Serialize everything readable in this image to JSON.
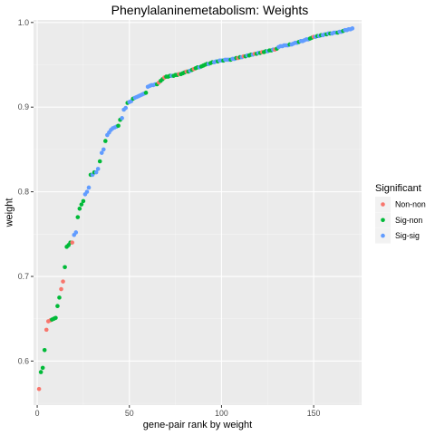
{
  "chart_data": {
    "type": "scatter",
    "title": "Phenylalaninemetabolism: Weights",
    "xlabel": "gene-pair rank by weight",
    "ylabel": "weight",
    "xlim": [
      -2,
      176
    ],
    "ylim": [
      0.548,
      1.003
    ],
    "x_ticks": [
      0,
      50,
      100,
      150
    ],
    "x_tick_labels": [
      "0",
      "50",
      "100",
      "150"
    ],
    "y_ticks": [
      0.6,
      0.7,
      0.8,
      0.9,
      1.0
    ],
    "y_tick_labels": [
      "0.6",
      "0.7",
      "0.8",
      "0.9",
      "1.0"
    ],
    "grid": true,
    "legend": {
      "title": "Significant",
      "position": "right",
      "entries": [
        {
          "key": "Non-non",
          "label": "Non-non",
          "color": "#F8766D"
        },
        {
          "key": "Sig-non",
          "label": "Sig-non",
          "color": "#00BA38"
        },
        {
          "key": "Sig-sig",
          "label": "Sig-sig",
          "color": "#619CFF"
        }
      ]
    },
    "colors": {
      "Non-non": "#F8766D",
      "Sig-non": "#00BA38",
      "Sig-sig": "#619CFF"
    },
    "points": [
      {
        "x": 1,
        "y": 0.567,
        "group": "Non-non"
      },
      {
        "x": 2,
        "y": 0.587,
        "group": "Sig-non"
      },
      {
        "x": 3,
        "y": 0.592,
        "group": "Sig-non"
      },
      {
        "x": 4,
        "y": 0.613,
        "group": "Sig-non"
      },
      {
        "x": 5,
        "y": 0.637,
        "group": "Non-non"
      },
      {
        "x": 6,
        "y": 0.647,
        "group": "Non-non"
      },
      {
        "x": 7,
        "y": 0.648,
        "group": "Non-non"
      },
      {
        "x": 8,
        "y": 0.649,
        "group": "Sig-non"
      },
      {
        "x": 9,
        "y": 0.65,
        "group": "Sig-non"
      },
      {
        "x": 10,
        "y": 0.651,
        "group": "Sig-non"
      },
      {
        "x": 11,
        "y": 0.665,
        "group": "Sig-non"
      },
      {
        "x": 12,
        "y": 0.675,
        "group": "Sig-non"
      },
      {
        "x": 13,
        "y": 0.685,
        "group": "Non-non"
      },
      {
        "x": 14,
        "y": 0.694,
        "group": "Non-non"
      },
      {
        "x": 15,
        "y": 0.711,
        "group": "Sig-non"
      },
      {
        "x": 16,
        "y": 0.735,
        "group": "Sig-non"
      },
      {
        "x": 17,
        "y": 0.737,
        "group": "Sig-non"
      },
      {
        "x": 18,
        "y": 0.74,
        "group": "Sig-non"
      },
      {
        "x": 19,
        "y": 0.74,
        "group": "Non-non"
      },
      {
        "x": 20,
        "y": 0.749,
        "group": "Sig-sig"
      },
      {
        "x": 21,
        "y": 0.752,
        "group": "Sig-sig"
      },
      {
        "x": 22,
        "y": 0.77,
        "group": "Sig-non"
      },
      {
        "x": 23,
        "y": 0.78,
        "group": "Sig-non"
      },
      {
        "x": 24,
        "y": 0.785,
        "group": "Sig-non"
      },
      {
        "x": 25,
        "y": 0.789,
        "group": "Sig-non"
      },
      {
        "x": 26,
        "y": 0.797,
        "group": "Sig-sig"
      },
      {
        "x": 27,
        "y": 0.8,
        "group": "Sig-sig"
      },
      {
        "x": 28,
        "y": 0.805,
        "group": "Sig-sig"
      },
      {
        "x": 29,
        "y": 0.82,
        "group": "Sig-non"
      },
      {
        "x": 30,
        "y": 0.82,
        "group": "Sig-sig"
      },
      {
        "x": 31,
        "y": 0.823,
        "group": "Sig-non"
      },
      {
        "x": 32,
        "y": 0.823,
        "group": "Sig-sig"
      },
      {
        "x": 33,
        "y": 0.827,
        "group": "Sig-sig"
      },
      {
        "x": 34,
        "y": 0.836,
        "group": "Sig-non"
      },
      {
        "x": 35,
        "y": 0.846,
        "group": "Sig-sig"
      },
      {
        "x": 36,
        "y": 0.85,
        "group": "Sig-sig"
      },
      {
        "x": 37,
        "y": 0.86,
        "group": "Sig-non"
      },
      {
        "x": 38,
        "y": 0.867,
        "group": "Sig-sig"
      },
      {
        "x": 39,
        "y": 0.87,
        "group": "Sig-sig"
      },
      {
        "x": 40,
        "y": 0.873,
        "group": "Sig-sig"
      },
      {
        "x": 41,
        "y": 0.875,
        "group": "Sig-sig"
      },
      {
        "x": 42,
        "y": 0.876,
        "group": "Sig-sig"
      },
      {
        "x": 43,
        "y": 0.877,
        "group": "Sig-sig"
      },
      {
        "x": 44,
        "y": 0.878,
        "group": "Sig-non"
      },
      {
        "x": 45,
        "y": 0.885,
        "group": "Sig-non"
      },
      {
        "x": 46,
        "y": 0.887,
        "group": "Sig-sig"
      },
      {
        "x": 47,
        "y": 0.897,
        "group": "Sig-sig"
      },
      {
        "x": 48,
        "y": 0.899,
        "group": "Sig-sig"
      },
      {
        "x": 49,
        "y": 0.905,
        "group": "Sig-non"
      },
      {
        "x": 50,
        "y": 0.906,
        "group": "Sig-sig"
      },
      {
        "x": 51,
        "y": 0.907,
        "group": "Sig-sig"
      },
      {
        "x": 52,
        "y": 0.91,
        "group": "Sig-non"
      },
      {
        "x": 53,
        "y": 0.911,
        "group": "Sig-sig"
      },
      {
        "x": 54,
        "y": 0.912,
        "group": "Sig-sig"
      },
      {
        "x": 55,
        "y": 0.913,
        "group": "Sig-sig"
      },
      {
        "x": 56,
        "y": 0.914,
        "group": "Sig-sig"
      },
      {
        "x": 57,
        "y": 0.915,
        "group": "Sig-sig"
      },
      {
        "x": 58,
        "y": 0.916,
        "group": "Sig-sig"
      },
      {
        "x": 59,
        "y": 0.917,
        "group": "Sig-non"
      },
      {
        "x": 60,
        "y": 0.924,
        "group": "Sig-sig"
      },
      {
        "x": 61,
        "y": 0.925,
        "group": "Sig-sig"
      },
      {
        "x": 62,
        "y": 0.926,
        "group": "Sig-sig"
      },
      {
        "x": 63,
        "y": 0.926,
        "group": "Sig-sig"
      },
      {
        "x": 64,
        "y": 0.927,
        "group": "Sig-sig"
      },
      {
        "x": 65,
        "y": 0.927,
        "group": "Sig-non"
      },
      {
        "x": 66,
        "y": 0.929,
        "group": "Non-non"
      },
      {
        "x": 67,
        "y": 0.931,
        "group": "Sig-non"
      },
      {
        "x": 68,
        "y": 0.933,
        "group": "Sig-non"
      },
      {
        "x": 69,
        "y": 0.935,
        "group": "Non-non"
      },
      {
        "x": 70,
        "y": 0.936,
        "group": "Sig-non"
      },
      {
        "x": 71,
        "y": 0.936,
        "group": "Sig-non"
      },
      {
        "x": 72,
        "y": 0.937,
        "group": "Sig-non"
      },
      {
        "x": 73,
        "y": 0.937,
        "group": "Sig-sig"
      },
      {
        "x": 74,
        "y": 0.937,
        "group": "Sig-non"
      },
      {
        "x": 75,
        "y": 0.938,
        "group": "Sig-non"
      },
      {
        "x": 76,
        "y": 0.938,
        "group": "Sig-non"
      },
      {
        "x": 77,
        "y": 0.939,
        "group": "Non-non"
      },
      {
        "x": 78,
        "y": 0.939,
        "group": "Sig-non"
      },
      {
        "x": 79,
        "y": 0.94,
        "group": "Sig-non"
      },
      {
        "x": 80,
        "y": 0.941,
        "group": "Sig-non"
      },
      {
        "x": 81,
        "y": 0.942,
        "group": "Non-non"
      },
      {
        "x": 82,
        "y": 0.942,
        "group": "Sig-non"
      },
      {
        "x": 83,
        "y": 0.943,
        "group": "Sig-sig"
      },
      {
        "x": 84,
        "y": 0.944,
        "group": "Sig-non"
      },
      {
        "x": 85,
        "y": 0.945,
        "group": "Non-non"
      },
      {
        "x": 86,
        "y": 0.946,
        "group": "Sig-non"
      },
      {
        "x": 87,
        "y": 0.947,
        "group": "Sig-non"
      },
      {
        "x": 88,
        "y": 0.947,
        "group": "Sig-sig"
      },
      {
        "x": 89,
        "y": 0.948,
        "group": "Sig-non"
      },
      {
        "x": 90,
        "y": 0.949,
        "group": "Sig-non"
      },
      {
        "x": 91,
        "y": 0.95,
        "group": "Sig-non"
      },
      {
        "x": 92,
        "y": 0.951,
        "group": "Sig-non"
      },
      {
        "x": 93,
        "y": 0.951,
        "group": "Sig-sig"
      },
      {
        "x": 94,
        "y": 0.952,
        "group": "Sig-non"
      },
      {
        "x": 95,
        "y": 0.953,
        "group": "Sig-non"
      },
      {
        "x": 96,
        "y": 0.953,
        "group": "Sig-sig"
      },
      {
        "x": 97,
        "y": 0.954,
        "group": "Sig-sig"
      },
      {
        "x": 98,
        "y": 0.954,
        "group": "Sig-non"
      },
      {
        "x": 99,
        "y": 0.955,
        "group": "Sig-sig"
      },
      {
        "x": 100,
        "y": 0.955,
        "group": "Sig-sig"
      },
      {
        "x": 101,
        "y": 0.955,
        "group": "Sig-non"
      },
      {
        "x": 102,
        "y": 0.956,
        "group": "Sig-sig"
      },
      {
        "x": 103,
        "y": 0.956,
        "group": "Sig-sig"
      },
      {
        "x": 104,
        "y": 0.956,
        "group": "Sig-sig"
      },
      {
        "x": 105,
        "y": 0.956,
        "group": "Sig-non"
      },
      {
        "x": 106,
        "y": 0.957,
        "group": "Sig-sig"
      },
      {
        "x": 107,
        "y": 0.957,
        "group": "Sig-sig"
      },
      {
        "x": 108,
        "y": 0.958,
        "group": "Sig-non"
      },
      {
        "x": 109,
        "y": 0.958,
        "group": "Non-non"
      },
      {
        "x": 110,
        "y": 0.959,
        "group": "Sig-non"
      },
      {
        "x": 111,
        "y": 0.959,
        "group": "Sig-sig"
      },
      {
        "x": 112,
        "y": 0.96,
        "group": "Non-non"
      },
      {
        "x": 113,
        "y": 0.96,
        "group": "Sig-non"
      },
      {
        "x": 114,
        "y": 0.961,
        "group": "Sig-sig"
      },
      {
        "x": 115,
        "y": 0.961,
        "group": "Sig-non"
      },
      {
        "x": 116,
        "y": 0.962,
        "group": "Sig-non"
      },
      {
        "x": 117,
        "y": 0.962,
        "group": "Sig-sig"
      },
      {
        "x": 118,
        "y": 0.963,
        "group": "Non-non"
      },
      {
        "x": 119,
        "y": 0.963,
        "group": "Sig-non"
      },
      {
        "x": 120,
        "y": 0.964,
        "group": "Sig-sig"
      },
      {
        "x": 121,
        "y": 0.964,
        "group": "Sig-non"
      },
      {
        "x": 122,
        "y": 0.965,
        "group": "Non-non"
      },
      {
        "x": 123,
        "y": 0.965,
        "group": "Sig-non"
      },
      {
        "x": 124,
        "y": 0.966,
        "group": "Sig-non"
      },
      {
        "x": 125,
        "y": 0.966,
        "group": "Sig-sig"
      },
      {
        "x": 126,
        "y": 0.967,
        "group": "Sig-non"
      },
      {
        "x": 127,
        "y": 0.967,
        "group": "Sig-non"
      },
      {
        "x": 128,
        "y": 0.968,
        "group": "Sig-sig"
      },
      {
        "x": 129,
        "y": 0.968,
        "group": "Non-non"
      },
      {
        "x": 130,
        "y": 0.969,
        "group": "Sig-non"
      },
      {
        "x": 131,
        "y": 0.971,
        "group": "Sig-sig"
      },
      {
        "x": 132,
        "y": 0.972,
        "group": "Sig-sig"
      },
      {
        "x": 133,
        "y": 0.972,
        "group": "Sig-sig"
      },
      {
        "x": 134,
        "y": 0.973,
        "group": "Sig-sig"
      },
      {
        "x": 135,
        "y": 0.973,
        "group": "Sig-sig"
      },
      {
        "x": 136,
        "y": 0.973,
        "group": "Sig-sig"
      },
      {
        "x": 137,
        "y": 0.974,
        "group": "Sig-non"
      },
      {
        "x": 138,
        "y": 0.974,
        "group": "Sig-sig"
      },
      {
        "x": 139,
        "y": 0.975,
        "group": "Sig-sig"
      },
      {
        "x": 140,
        "y": 0.976,
        "group": "Sig-sig"
      },
      {
        "x": 141,
        "y": 0.976,
        "group": "Sig-sig"
      },
      {
        "x": 142,
        "y": 0.977,
        "group": "Sig-non"
      },
      {
        "x": 143,
        "y": 0.978,
        "group": "Sig-sig"
      },
      {
        "x": 144,
        "y": 0.978,
        "group": "Sig-sig"
      },
      {
        "x": 145,
        "y": 0.979,
        "group": "Sig-sig"
      },
      {
        "x": 146,
        "y": 0.98,
        "group": "Sig-sig"
      },
      {
        "x": 147,
        "y": 0.98,
        "group": "Sig-sig"
      },
      {
        "x": 148,
        "y": 0.981,
        "group": "Sig-non"
      },
      {
        "x": 149,
        "y": 0.982,
        "group": "Sig-non"
      },
      {
        "x": 150,
        "y": 0.983,
        "group": "Non-non"
      },
      {
        "x": 151,
        "y": 0.983,
        "group": "Sig-sig"
      },
      {
        "x": 152,
        "y": 0.984,
        "group": "Sig-non"
      },
      {
        "x": 153,
        "y": 0.984,
        "group": "Sig-sig"
      },
      {
        "x": 154,
        "y": 0.985,
        "group": "Sig-non"
      },
      {
        "x": 155,
        "y": 0.985,
        "group": "Sig-sig"
      },
      {
        "x": 156,
        "y": 0.986,
        "group": "Sig-sig"
      },
      {
        "x": 157,
        "y": 0.986,
        "group": "Sig-non"
      },
      {
        "x": 158,
        "y": 0.987,
        "group": "Sig-sig"
      },
      {
        "x": 159,
        "y": 0.987,
        "group": "Sig-non"
      },
      {
        "x": 160,
        "y": 0.987,
        "group": "Sig-sig"
      },
      {
        "x": 161,
        "y": 0.988,
        "group": "Sig-sig"
      },
      {
        "x": 162,
        "y": 0.988,
        "group": "Sig-sig"
      },
      {
        "x": 163,
        "y": 0.988,
        "group": "Sig-non"
      },
      {
        "x": 164,
        "y": 0.989,
        "group": "Sig-sig"
      },
      {
        "x": 165,
        "y": 0.989,
        "group": "Sig-sig"
      },
      {
        "x": 166,
        "y": 0.99,
        "group": "Sig-non"
      },
      {
        "x": 167,
        "y": 0.991,
        "group": "Sig-sig"
      },
      {
        "x": 168,
        "y": 0.991,
        "group": "Sig-sig"
      },
      {
        "x": 169,
        "y": 0.992,
        "group": "Sig-sig"
      },
      {
        "x": 170,
        "y": 0.992,
        "group": "Sig-sig"
      },
      {
        "x": 171,
        "y": 0.993,
        "group": "Sig-sig"
      }
    ]
  }
}
